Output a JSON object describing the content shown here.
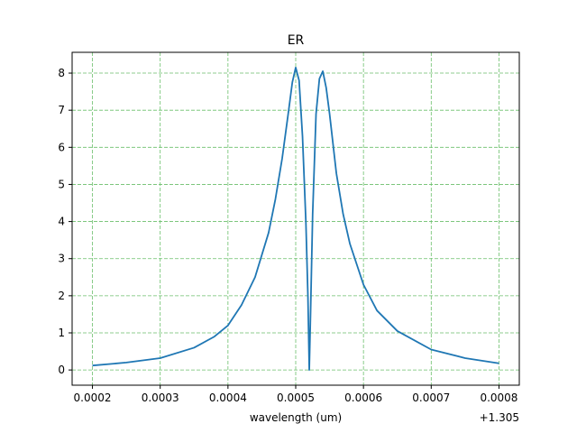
{
  "chart_data": {
    "type": "line",
    "title": "ER",
    "xlabel": "wavelength (um)",
    "ylabel": "",
    "x_offset_label": "+1.305",
    "xlim": [
      0.00017,
      0.00083
    ],
    "ylim": [
      -0.41,
      8.56
    ],
    "x_ticks": [
      0.0002,
      0.0003,
      0.0004,
      0.0005,
      0.0006,
      0.0007,
      0.0008
    ],
    "x_tick_labels": [
      "0.0002",
      "0.0003",
      "0.0004",
      "0.0005",
      "0.0006",
      "0.0007",
      "0.0008"
    ],
    "y_ticks": [
      0,
      1,
      2,
      3,
      4,
      5,
      6,
      7,
      8
    ],
    "y_tick_labels": [
      "0",
      "1",
      "2",
      "3",
      "4",
      "5",
      "6",
      "7",
      "8"
    ],
    "grid": true,
    "grid_color": "#6bbf6b",
    "series": [
      {
        "color": "#1f77b4",
        "x": [
          0.0002,
          0.00025,
          0.0003,
          0.00035,
          0.00038,
          0.0004,
          0.00042,
          0.00044,
          0.00046,
          0.00047,
          0.00048,
          0.00049,
          0.000495,
          0.0005,
          0.000505,
          0.00051,
          0.000515,
          0.000518,
          0.00052,
          0.000522,
          0.000525,
          0.00053,
          0.000535,
          0.00054,
          0.000545,
          0.00055,
          0.00056,
          0.00057,
          0.00058,
          0.0006,
          0.00062,
          0.00065,
          0.0007,
          0.00075,
          0.0008
        ],
        "y": [
          0.12,
          0.2,
          0.32,
          0.6,
          0.9,
          1.2,
          1.75,
          2.5,
          3.7,
          4.6,
          5.7,
          7.05,
          7.75,
          8.15,
          7.8,
          6.3,
          4.0,
          2.0,
          0.0,
          1.6,
          4.2,
          6.9,
          7.85,
          8.05,
          7.6,
          6.9,
          5.3,
          4.2,
          3.4,
          2.3,
          1.6,
          1.05,
          0.55,
          0.32,
          0.18
        ]
      }
    ]
  }
}
